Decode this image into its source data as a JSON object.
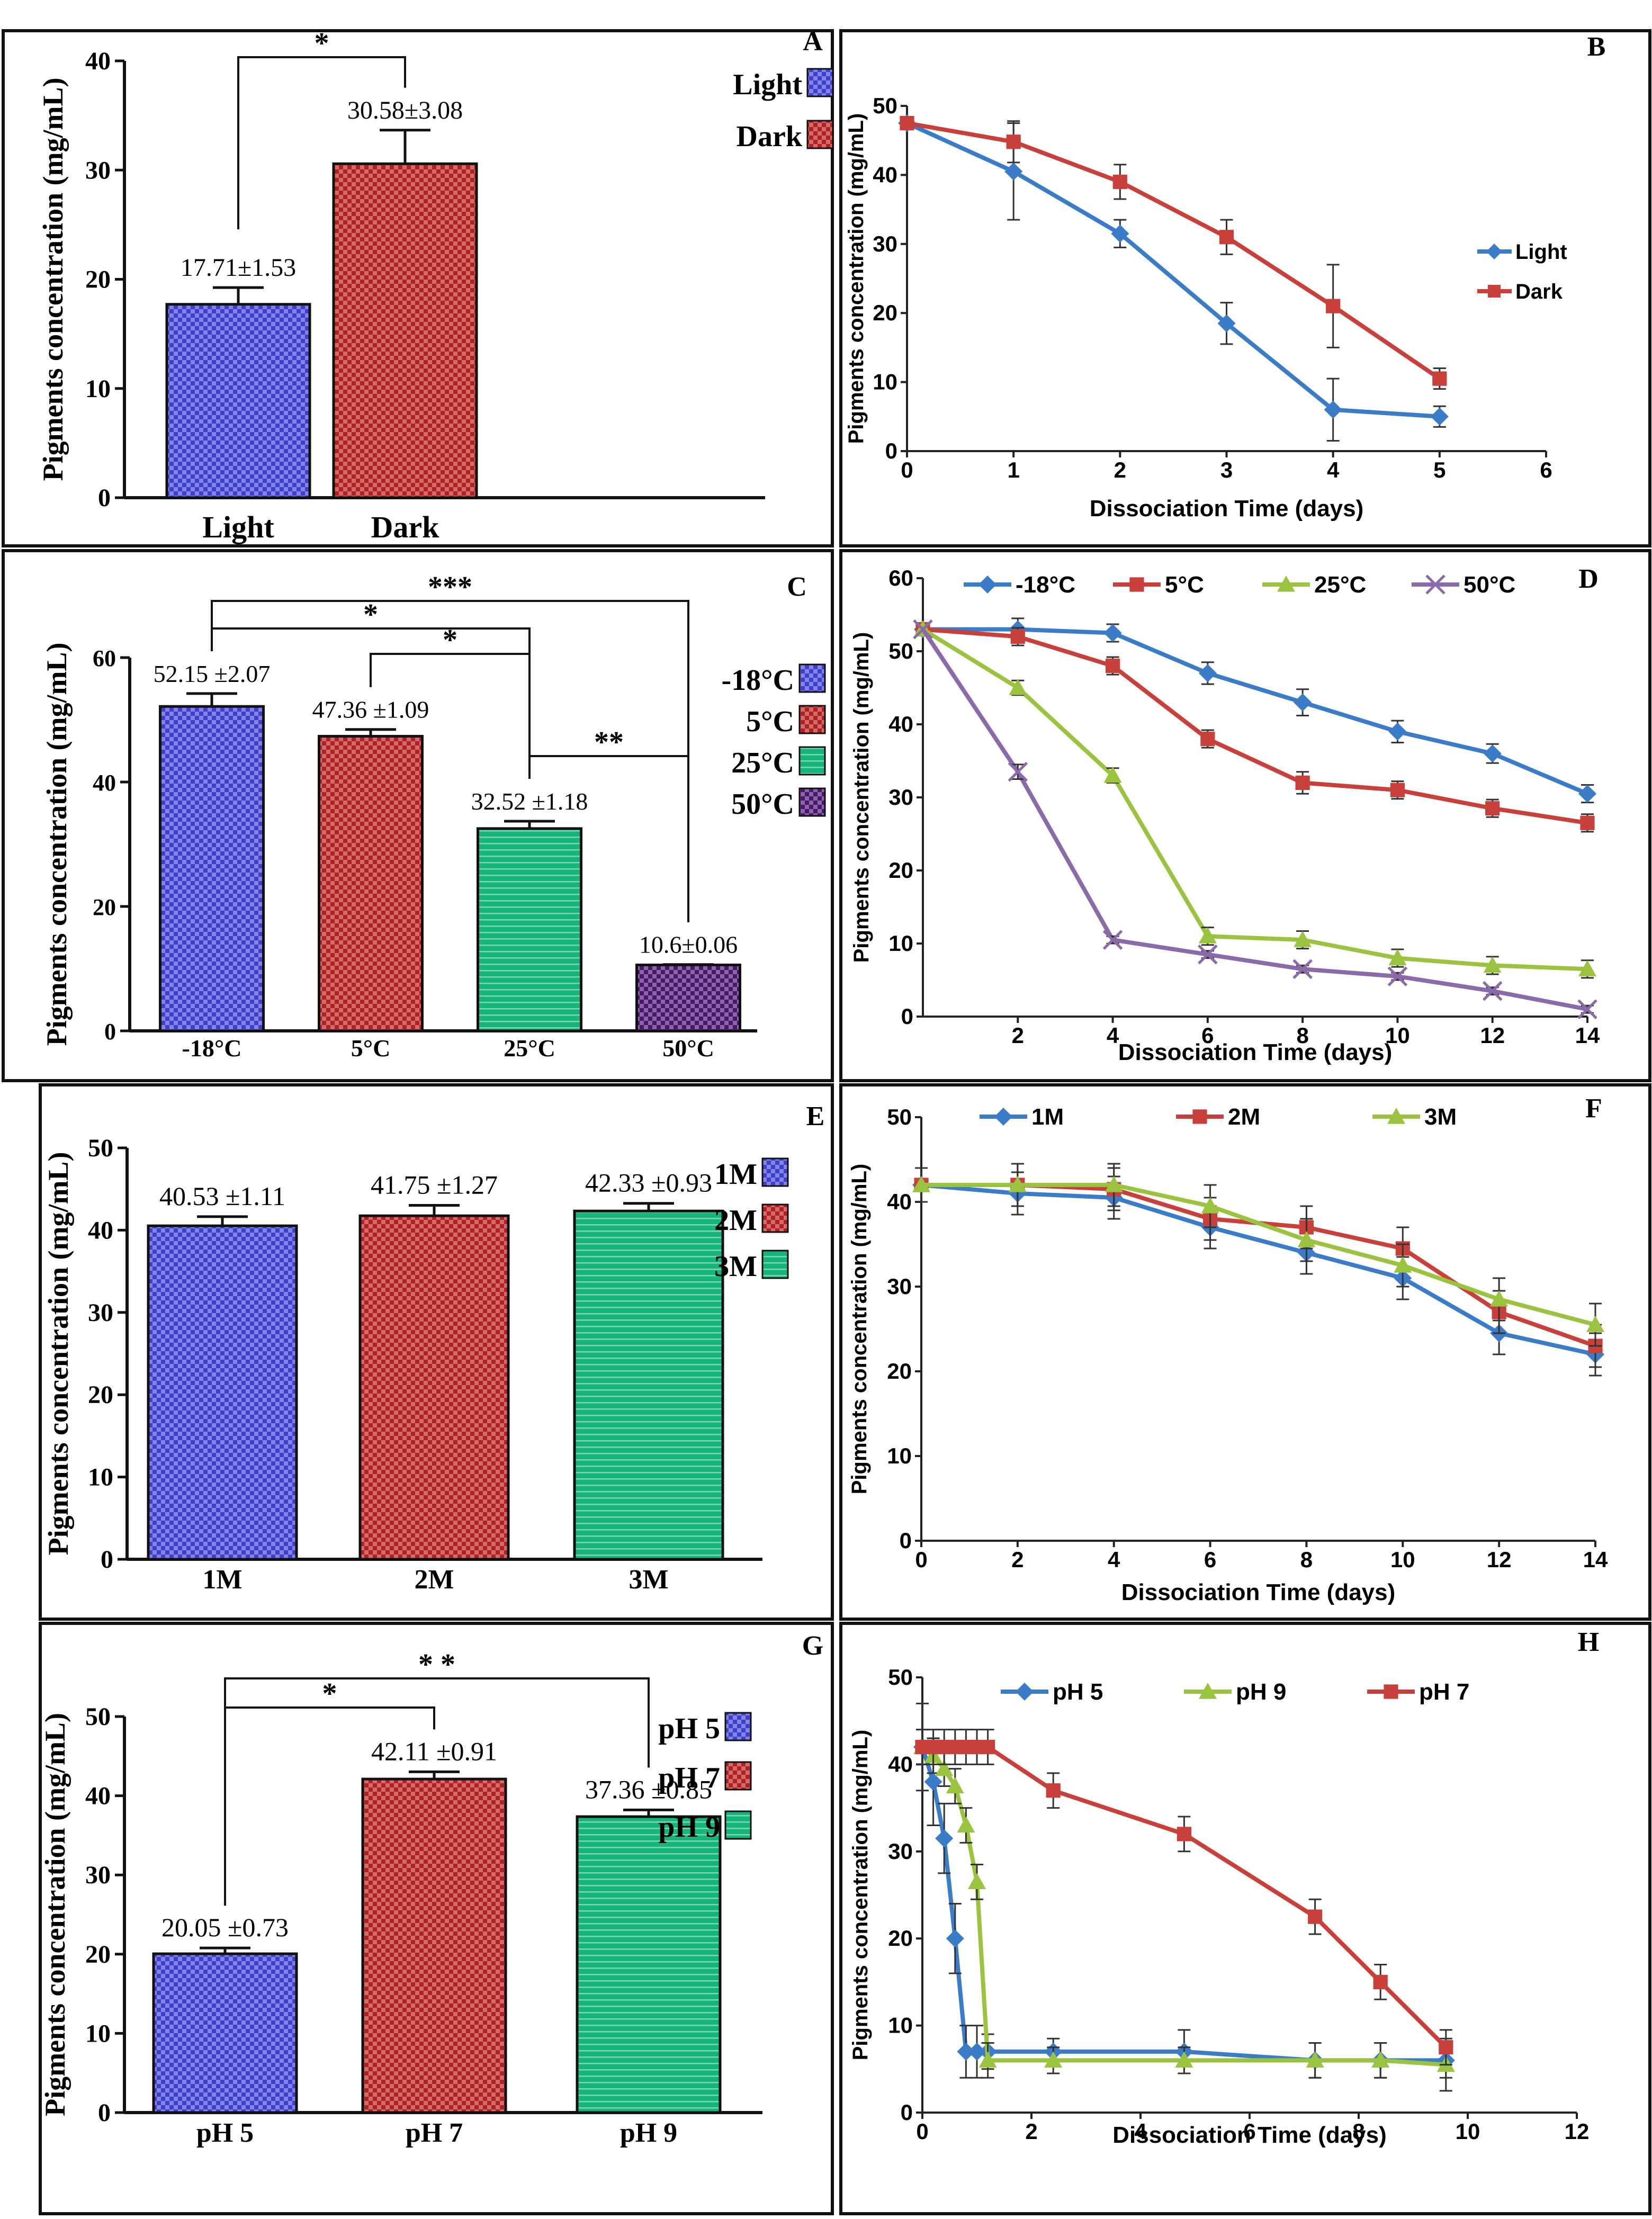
{
  "figure": {
    "panels": [
      "A",
      "B",
      "C",
      "D",
      "E",
      "F",
      "G",
      "H"
    ]
  },
  "colors": {
    "blue_bar": "#3f3fd0",
    "red_bar": "#b51f1f",
    "green_bar": "#16b57a",
    "purple_bar": "#4a1670",
    "line_blue": "#3a7cc8",
    "line_red": "#c9403b",
    "line_green": "#9ac43f",
    "line_purple": "#8a6aa8"
  },
  "chart_data": [
    {
      "panel": "A",
      "type": "bar",
      "letter": "A",
      "categories": [
        "Light",
        "Dark"
      ],
      "values": [
        17.71,
        30.58
      ],
      "errors": [
        1.53,
        3.08
      ],
      "value_labels": [
        "17.71±1.53",
        "30.58±3.08"
      ],
      "colors": [
        "#3f3fd0",
        "#b51f1f"
      ],
      "ylabel": "Pigments concentration (mg/mL)",
      "ylim": [
        0,
        40
      ],
      "yticks": [
        "0",
        "10",
        "20",
        "30",
        "40"
      ],
      "legend": [
        {
          "label": "Light",
          "color": "#3f3fd0"
        },
        {
          "label": "Dark",
          "color": "#b51f1f"
        }
      ],
      "brackets": [
        {
          "from": 0,
          "to": 1,
          "label": "*"
        }
      ]
    },
    {
      "panel": "B",
      "type": "line",
      "letter": "B",
      "x": [
        0,
        1,
        2,
        3,
        4,
        5
      ],
      "series": [
        {
          "name": "Light",
          "color": "#3a7cc8",
          "marker": "diamond",
          "values": [
            47.5,
            40.5,
            31.5,
            18.5,
            6,
            5
          ],
          "errors": [
            0,
            7,
            2,
            3,
            4.5,
            1.5
          ]
        },
        {
          "name": "Dark",
          "color": "#c9403b",
          "marker": "square",
          "values": [
            47.5,
            44.8,
            39,
            31,
            21,
            10.5
          ],
          "errors": [
            0,
            3,
            2.5,
            2.5,
            6,
            1.5
          ]
        }
      ],
      "xlabel": "Dissociation Time (days)",
      "ylabel": "Pigments concentration (mg/mL)",
      "xlim": [
        0,
        6
      ],
      "ylim": [
        0,
        50
      ],
      "xticks": [
        "0",
        "1",
        "2",
        "3",
        "4",
        "5",
        "6"
      ],
      "yticks": [
        "0",
        "10",
        "20",
        "30",
        "40",
        "50"
      ],
      "legend_position": "right"
    },
    {
      "panel": "C",
      "type": "bar",
      "letter": "C",
      "categories": [
        "-18°C",
        "5°C",
        "25°C",
        "50°C"
      ],
      "values": [
        52.15,
        47.36,
        32.52,
        10.6
      ],
      "errors": [
        2.07,
        1.09,
        1.18,
        0.06
      ],
      "value_labels": [
        "52.15 ±2.07",
        "47.36 ±1.09",
        "32.52 ±1.18",
        "10.6±0.06"
      ],
      "colors": [
        "#3f3fd0",
        "#b51f1f",
        "#16b57a",
        "#4a1670"
      ],
      "ylabel": "Pigments concentration (mg/mL)",
      "ylim": [
        0,
        60
      ],
      "yticks": [
        "0",
        "20",
        "40",
        "60"
      ],
      "legend": [
        {
          "label": "-18°C",
          "color": "#3f3fd0"
        },
        {
          "label": "5°C",
          "color": "#b51f1f"
        },
        {
          "label": "25°C",
          "color": "#16b57a"
        },
        {
          "label": "50°C",
          "color": "#4a1670"
        }
      ],
      "brackets": [
        {
          "from": 0,
          "to": 3,
          "label": "***"
        },
        {
          "from": 0,
          "to": 2,
          "label": "*"
        },
        {
          "from": 1,
          "to": 2,
          "label": "*"
        },
        {
          "from": 2,
          "to": 3,
          "label": "**"
        }
      ]
    },
    {
      "panel": "D",
      "type": "line",
      "letter": "D",
      "x": [
        0,
        2,
        4,
        6,
        8,
        10,
        12,
        14
      ],
      "series": [
        {
          "name": "-18°C",
          "color": "#3a7cc8",
          "marker": "diamond",
          "values": [
            53,
            53,
            52.5,
            47,
            43,
            39,
            36,
            30.5
          ],
          "errors": [
            0,
            1.5,
            1.2,
            1.5,
            1.8,
            1.5,
            1.3,
            1.2
          ]
        },
        {
          "name": "5°C",
          "color": "#c9403b",
          "marker": "square",
          "values": [
            53,
            52,
            48,
            38,
            32,
            31,
            28.5,
            26.5
          ],
          "errors": [
            0,
            1.2,
            1.2,
            1.2,
            1.5,
            1.2,
            1.2,
            1.2
          ]
        },
        {
          "name": "25°C",
          "color": "#9ac43f",
          "marker": "triangle",
          "values": [
            53,
            45,
            33,
            11,
            10.5,
            8,
            7,
            6.5
          ],
          "errors": [
            0,
            1,
            1,
            1.2,
            1.2,
            1.2,
            1.2,
            1.2
          ]
        },
        {
          "name": "50°C",
          "color": "#8a6aa8",
          "marker": "x",
          "values": [
            53,
            33.5,
            10.5,
            8.5,
            6.5,
            5.5,
            3.5,
            1
          ],
          "errors": [
            0,
            1,
            0.5,
            0.5,
            0.5,
            0.5,
            0.5,
            0.5
          ]
        }
      ],
      "xlabel": "Dissociation Time (days)",
      "ylabel": "Pigments concentration (mg/mL)",
      "xlim": [
        0,
        14
      ],
      "ylim": [
        0,
        60
      ],
      "xticks": [
        "2",
        "4",
        "6",
        "8",
        "10",
        "12",
        "14"
      ],
      "yticks": [
        "0",
        "10",
        "20",
        "30",
        "40",
        "50",
        "60"
      ],
      "legend_position": "top"
    },
    {
      "panel": "E",
      "type": "bar",
      "letter": "E",
      "categories": [
        "1M",
        "2M",
        "3M"
      ],
      "values": [
        40.53,
        41.75,
        42.33
      ],
      "errors": [
        1.11,
        1.27,
        0.93
      ],
      "value_labels": [
        "40.53 ±1.11",
        "41.75 ±1.27",
        "42.33 ±0.93"
      ],
      "colors": [
        "#3f3fd0",
        "#b51f1f",
        "#16b57a"
      ],
      "ylabel": "Pigments concentration (mg/mL)",
      "ylim": [
        0,
        50
      ],
      "yticks": [
        "0",
        "10",
        "20",
        "30",
        "40",
        "50"
      ],
      "legend": [
        {
          "label": "1M",
          "color": "#3f3fd0"
        },
        {
          "label": "2M",
          "color": "#b51f1f"
        },
        {
          "label": "3M",
          "color": "#16b57a"
        }
      ],
      "brackets": []
    },
    {
      "panel": "F",
      "type": "line",
      "letter": "F",
      "x": [
        0,
        2,
        4,
        6,
        8,
        10,
        12,
        14
      ],
      "series": [
        {
          "name": "1M",
          "color": "#3a7cc8",
          "marker": "diamond",
          "values": [
            42,
            41,
            40.5,
            37,
            34,
            31,
            24.5,
            22
          ],
          "errors": [
            2,
            2.5,
            2.5,
            2.5,
            2.5,
            2.5,
            2.5,
            2.5
          ]
        },
        {
          "name": "2M",
          "color": "#c9403b",
          "marker": "square",
          "values": [
            42,
            42,
            41.5,
            38,
            37,
            34.5,
            27,
            23
          ],
          "errors": [
            2,
            2.5,
            2.5,
            2.5,
            2.5,
            2.5,
            2.5,
            2.5
          ]
        },
        {
          "name": "3M",
          "color": "#9ac43f",
          "marker": "triangle",
          "values": [
            42,
            42,
            42,
            39.5,
            35.5,
            32.5,
            28.5,
            25.5
          ],
          "errors": [
            2,
            2.5,
            2.5,
            2.5,
            2.5,
            2.5,
            2.5,
            2.5
          ]
        }
      ],
      "xlabel": "Dissociation Time (days)",
      "ylabel": "Pigments concentration (mg/mL)",
      "xlim": [
        0,
        14
      ],
      "ylim": [
        0,
        50
      ],
      "xticks": [
        "0",
        "2",
        "4",
        "6",
        "8",
        "10",
        "12",
        "14"
      ],
      "yticks": [
        "0",
        "10",
        "20",
        "30",
        "40",
        "50"
      ],
      "legend_position": "top"
    },
    {
      "panel": "G",
      "type": "bar",
      "letter": "G",
      "categories": [
        "pH 5",
        "pH 7",
        "pH 9"
      ],
      "values": [
        20.05,
        42.11,
        37.36
      ],
      "errors": [
        0.73,
        0.91,
        0.85
      ],
      "value_labels": [
        "20.05 ±0.73",
        "42.11 ±0.91",
        "37.36 ±0.85"
      ],
      "colors": [
        "#3f3fd0",
        "#b51f1f",
        "#16b57a"
      ],
      "ylabel": "Pigments concentration (mg/mL)",
      "ylim": [
        0,
        50
      ],
      "yticks": [
        "0",
        "10",
        "20",
        "30",
        "40",
        "50"
      ],
      "legend": [
        {
          "label": "pH 5",
          "color": "#3f3fd0"
        },
        {
          "label": "pH 7",
          "color": "#b51f1f"
        },
        {
          "label": "pH 9",
          "color": "#16b57a"
        }
      ],
      "brackets": [
        {
          "from": 0,
          "to": 2,
          "label": "* *"
        },
        {
          "from": 0,
          "to": 1,
          "label": "*"
        }
      ]
    },
    {
      "panel": "H",
      "type": "line",
      "letter": "H",
      "series": [
        {
          "name": "pH 5",
          "color": "#3a7cc8",
          "marker": "diamond",
          "x": [
            0,
            0.2,
            0.4,
            0.6,
            0.8,
            1.0,
            1.2,
            2.4,
            4.8,
            7.2,
            8.4,
            9.6
          ],
          "values": [
            42,
            38,
            31.5,
            20,
            7,
            7,
            7,
            7,
            7,
            6,
            6,
            6
          ],
          "errors": [
            5,
            5,
            4,
            4,
            3,
            3,
            2,
            1.5,
            2.5,
            2,
            2,
            2
          ]
        },
        {
          "name": "pH 9",
          "color": "#9ac43f",
          "marker": "triangle",
          "x": [
            0,
            0.2,
            0.4,
            0.6,
            0.8,
            1.0,
            1.2,
            2.4,
            4.8,
            7.2,
            8.4,
            9.6
          ],
          "values": [
            42,
            41,
            39.5,
            37.5,
            33,
            26.5,
            6,
            6,
            6,
            6,
            6,
            5.5
          ],
          "errors": [
            2,
            2,
            2,
            2,
            2,
            2,
            2,
            1.5,
            1.5,
            2,
            2,
            3
          ]
        },
        {
          "name": "pH 7",
          "color": "#c9403b",
          "marker": "square",
          "x": [
            0,
            0.2,
            0.4,
            0.6,
            0.8,
            1.0,
            1.2,
            2.4,
            4.8,
            7.2,
            8.4,
            9.6
          ],
          "values": [
            42,
            42,
            42,
            42,
            42,
            42,
            42,
            37,
            32,
            22.5,
            15,
            7.5
          ],
          "errors": [
            2,
            2,
            2,
            2,
            2,
            2,
            2,
            2,
            2,
            2,
            2,
            2
          ]
        }
      ],
      "xlabel": "Dissociation Time (days)",
      "ylabel": "Pigments concentration (mg/mL)",
      "xlim": [
        0,
        12
      ],
      "ylim": [
        0,
        50
      ],
      "xticks": [
        "0",
        "2",
        "4",
        "6",
        "8",
        "10",
        "12"
      ],
      "yticks": [
        "0",
        "10",
        "20",
        "30",
        "40",
        "50"
      ],
      "legend_position": "top"
    }
  ]
}
